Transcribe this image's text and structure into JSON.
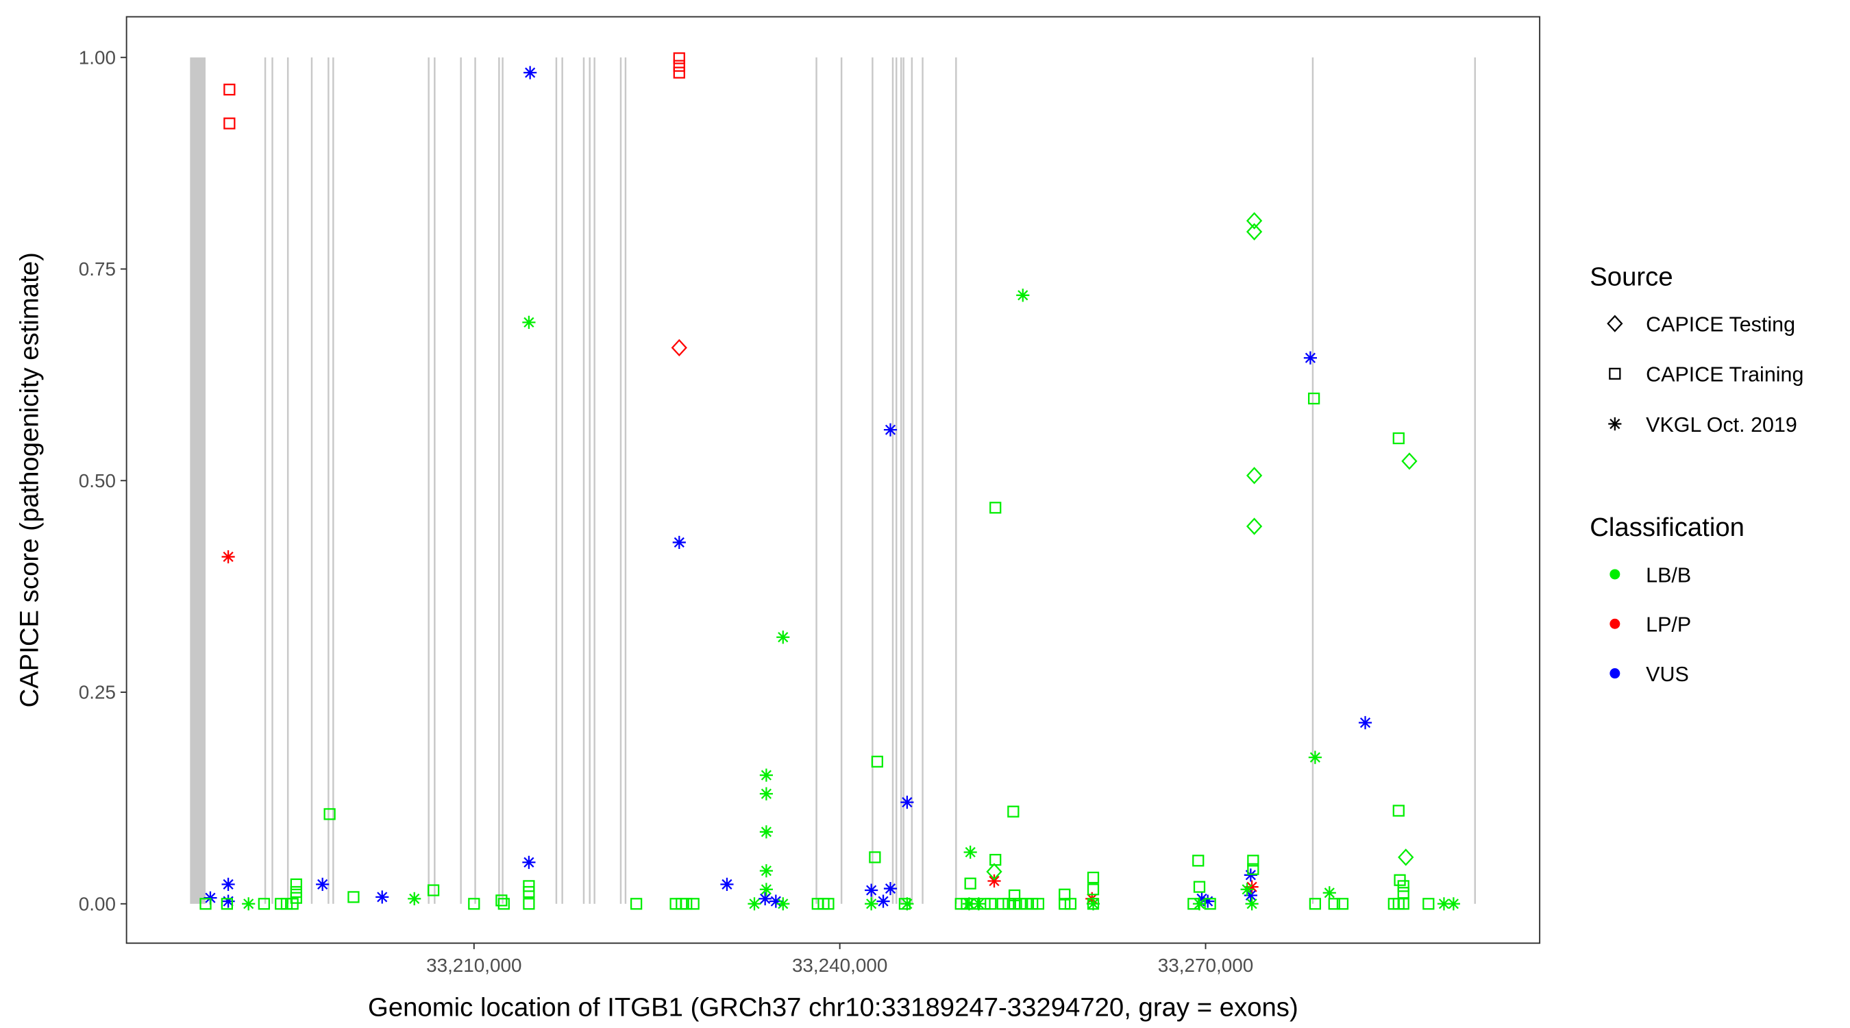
{
  "chart_data": {
    "type": "scatter",
    "xlabel": "Genomic location of ITGB1 (GRCh37 chr10:33189247-33294720, gray = exons)",
    "ylabel": "CAPICE score (pathogenicity estimate)",
    "xlim": [
      33181500,
      33297400
    ],
    "ylim": [
      -0.0465,
      1.048
    ],
    "xticks": [
      33210000,
      33240000,
      33270000
    ],
    "xtick_labels": [
      "33,210,000",
      "33,240,000",
      "33,270,000"
    ],
    "yticks": [
      0,
      0.25,
      0.5,
      0.75,
      1
    ],
    "ytick_labels": [
      "0.00",
      "0.25",
      "0.50",
      "0.75",
      "1.00"
    ],
    "grid": false,
    "legend_placement": "right",
    "exon_color": "#c8c8c8",
    "exons": [
      [
        33186711,
        33187984
      ],
      [
        33192876,
        33192876
      ],
      [
        33193463,
        33193463
      ],
      [
        33194735,
        33194735
      ],
      [
        33196692,
        33196692
      ],
      [
        33198062,
        33198062
      ],
      [
        33198454,
        33198454
      ],
      [
        33206282,
        33206282
      ],
      [
        33206771,
        33206771
      ],
      [
        33208924,
        33208924
      ],
      [
        33210098,
        33210098
      ],
      [
        33212055,
        33212055
      ],
      [
        33212348,
        33212348
      ],
      [
        33216752,
        33216752
      ],
      [
        33217241,
        33217241
      ],
      [
        33219002,
        33219002
      ],
      [
        33219491,
        33219491
      ],
      [
        33219883,
        33219883
      ],
      [
        33222036,
        33222036
      ],
      [
        33222427,
        33222427
      ],
      [
        33238083,
        33238083
      ],
      [
        33240138,
        33240138
      ],
      [
        33242682,
        33242682
      ],
      [
        33244346,
        33244346
      ],
      [
        33244640,
        33244640
      ],
      [
        33245031,
        33245031
      ],
      [
        33245227,
        33245227
      ],
      [
        33245912,
        33245912
      ],
      [
        33246793,
        33246793
      ],
      [
        33249533,
        33249533
      ],
      [
        33278790,
        33278790
      ],
      [
        33292097,
        33292097
      ]
    ],
    "legend": {
      "source_title": "Source",
      "sources": [
        {
          "name": "CAPICE Testing",
          "shape": "diamond"
        },
        {
          "name": "CAPICE Training",
          "shape": "square"
        },
        {
          "name": "VKGL Oct. 2019",
          "shape": "asterisk"
        }
      ],
      "class_title": "Classification",
      "classes": [
        {
          "name": "LB/B",
          "color": "#00ee00"
        },
        {
          "name": "LP/P",
          "color": "#ff0000"
        },
        {
          "name": "VUS",
          "color": "#0000ff"
        }
      ]
    },
    "series": [
      {
        "source": "CAPICE Training",
        "classification": "LP/P",
        "points": [
          [
            33189941,
            0.962
          ],
          [
            33189941,
            0.922
          ],
          [
            33226830,
            0.999
          ],
          [
            33226830,
            0.99
          ],
          [
            33226830,
            0.982
          ]
        ]
      },
      {
        "source": "CAPICE Testing",
        "classification": "LP/P",
        "points": [
          [
            33226830,
            0.657
          ]
        ]
      },
      {
        "source": "VKGL Oct. 2019",
        "classification": "LP/P",
        "points": [
          [
            33189843,
            0.41
          ],
          [
            33252663,
            0.027
          ],
          [
            33260686,
            0.006
          ],
          [
            33273798,
            0.02
          ]
        ]
      },
      {
        "source": "VKGL Oct. 2019",
        "classification": "VUS",
        "points": [
          [
            33214599,
            0.982
          ],
          [
            33226830,
            0.427
          ],
          [
            33244150,
            0.56
          ],
          [
            33245520,
            0.12
          ],
          [
            33278593,
            0.645
          ],
          [
            33283094,
            0.214
          ],
          [
            33214501,
            0.049
          ],
          [
            33189843,
            0.023
          ],
          [
            33188375,
            0.007
          ],
          [
            33189843,
            0.003
          ],
          [
            33197573,
            0.023
          ],
          [
            33202466,
            0.008
          ],
          [
            33230744,
            0.023
          ],
          [
            33233875,
            0.006
          ],
          [
            33234756,
            0.003
          ],
          [
            33242584,
            0.016
          ],
          [
            33244150,
            0.018
          ],
          [
            33243563,
            0.003
          ],
          [
            33269689,
            0.006
          ],
          [
            33270178,
            0.003
          ],
          [
            33273700,
            0.034
          ],
          [
            33273700,
            0.01
          ]
        ]
      },
      {
        "source": "VKGL Oct. 2019",
        "classification": "LB/B",
        "points": [
          [
            33214501,
            0.687
          ],
          [
            33255011,
            0.719
          ],
          [
            33235343,
            0.315
          ],
          [
            33233973,
            0.152
          ],
          [
            33233973,
            0.13
          ],
          [
            33233973,
            0.085
          ],
          [
            33233973,
            0.039
          ],
          [
            33233973,
            0.017
          ],
          [
            33278984,
            0.173
          ],
          [
            33250706,
            0.061
          ],
          [
            33191506,
            0
          ],
          [
            33205107,
            0.006
          ],
          [
            33232995,
            0
          ],
          [
            33235343,
            0
          ],
          [
            33242584,
            0
          ],
          [
            33245520,
            0
          ],
          [
            33250608,
            0
          ],
          [
            33251391,
            0
          ],
          [
            33260784,
            0
          ],
          [
            33269493,
            0
          ],
          [
            33273798,
            0
          ],
          [
            33280158,
            0.013
          ],
          [
            33289552,
            0
          ],
          [
            33290335,
            0
          ],
          [
            33273407,
            0.017
          ]
        ]
      },
      {
        "source": "CAPICE Testing",
        "classification": "LB/B",
        "points": [
          [
            33273994,
            0.807
          ],
          [
            33273994,
            0.794
          ],
          [
            33273994,
            0.506
          ],
          [
            33273994,
            0.446
          ],
          [
            33286714,
            0.523
          ],
          [
            33286421,
            0.055
          ],
          [
            33252663,
            0.038
          ]
        ]
      },
      {
        "source": "CAPICE Training",
        "classification": "LB/B",
        "points": [
          [
            33198160,
            0.106
          ],
          [
            33243073,
            0.168
          ],
          [
            33252760,
            0.468
          ],
          [
            33254228,
            0.109
          ],
          [
            33278886,
            0.597
          ],
          [
            33285834,
            0.55
          ],
          [
            33285834,
            0.11
          ],
          [
            33242878,
            0.055
          ],
          [
            33269395,
            0.051
          ],
          [
            33273896,
            0.051
          ],
          [
            33273896,
            0.041
          ],
          [
            33260784,
            0.031
          ],
          [
            33260784,
            0.017
          ],
          [
            33269493,
            0.02
          ],
          [
            33285932,
            0.028
          ],
          [
            33286225,
            0.021
          ],
          [
            33286225,
            0.013
          ],
          [
            33250706,
            0.024
          ],
          [
            33252760,
            0.052
          ],
          [
            33195420,
            0.023
          ],
          [
            33195420,
            0.014
          ],
          [
            33195420,
            0.007
          ],
          [
            33200117,
            0.008
          ],
          [
            33206673,
            0.016
          ],
          [
            33214501,
            0.014
          ],
          [
            33214501,
            0.021
          ],
          [
            33212251,
            0.004
          ],
          [
            33258436,
            0.011
          ],
          [
            33254326,
            0.01
          ],
          [
            33187984,
            0
          ],
          [
            33189745,
            0
          ],
          [
            33192778,
            0
          ],
          [
            33194148,
            0
          ],
          [
            33194638,
            0
          ],
          [
            33195127,
            0
          ],
          [
            33210000,
            0
          ],
          [
            33212446,
            0
          ],
          [
            33214501,
            0
          ],
          [
            33223308,
            0
          ],
          [
            33226537,
            0
          ],
          [
            33227026,
            0
          ],
          [
            33227417,
            0
          ],
          [
            33228004,
            0
          ],
          [
            33238181,
            0
          ],
          [
            33238670,
            0
          ],
          [
            33239061,
            0
          ],
          [
            33245324,
            0
          ],
          [
            33249923,
            0
          ],
          [
            33250412,
            0
          ],
          [
            33250901,
            0
          ],
          [
            33251880,
            0
          ],
          [
            33252369,
            0
          ],
          [
            33253348,
            0
          ],
          [
            33253837,
            0
          ],
          [
            33254326,
            0
          ],
          [
            33254815,
            0
          ],
          [
            33255305,
            0
          ],
          [
            33255794,
            0
          ],
          [
            33256283,
            0
          ],
          [
            33258436,
            0
          ],
          [
            33258925,
            0
          ],
          [
            33260784,
            0
          ],
          [
            33269004,
            0
          ],
          [
            33270373,
            0
          ],
          [
            33278984,
            0
          ],
          [
            33280550,
            0
          ],
          [
            33281235,
            0
          ],
          [
            33285442,
            0
          ],
          [
            33285834,
            0
          ],
          [
            33286225,
            0
          ],
          [
            33288280,
            0
          ]
        ]
      }
    ]
  }
}
